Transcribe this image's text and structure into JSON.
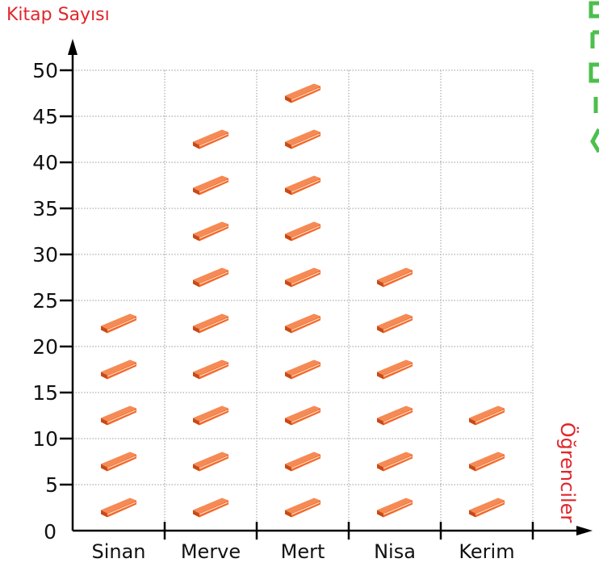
{
  "chart_data": {
    "type": "pictograph",
    "title": "",
    "ylabel": "Kitap Sayısı",
    "xlabel": "Öğrenciler",
    "categories": [
      "Sinan",
      "Merve",
      "Mert",
      "Nisa",
      "Kerim"
    ],
    "values": [
      25,
      45,
      50,
      30,
      15
    ],
    "symbol_value": 5,
    "symbol": "book-icon",
    "ylim": [
      0,
      50
    ],
    "yticks": [
      0,
      5,
      10,
      15,
      20,
      25,
      30,
      35,
      40,
      45,
      50
    ],
    "grid": true,
    "colors": {
      "book": "#f26a2e",
      "book_dark": "#c94a16",
      "title": "#e0262b",
      "axis": "#000000",
      "grid": "#9a9a9a",
      "edge_tab": "#4cbf4c"
    }
  }
}
